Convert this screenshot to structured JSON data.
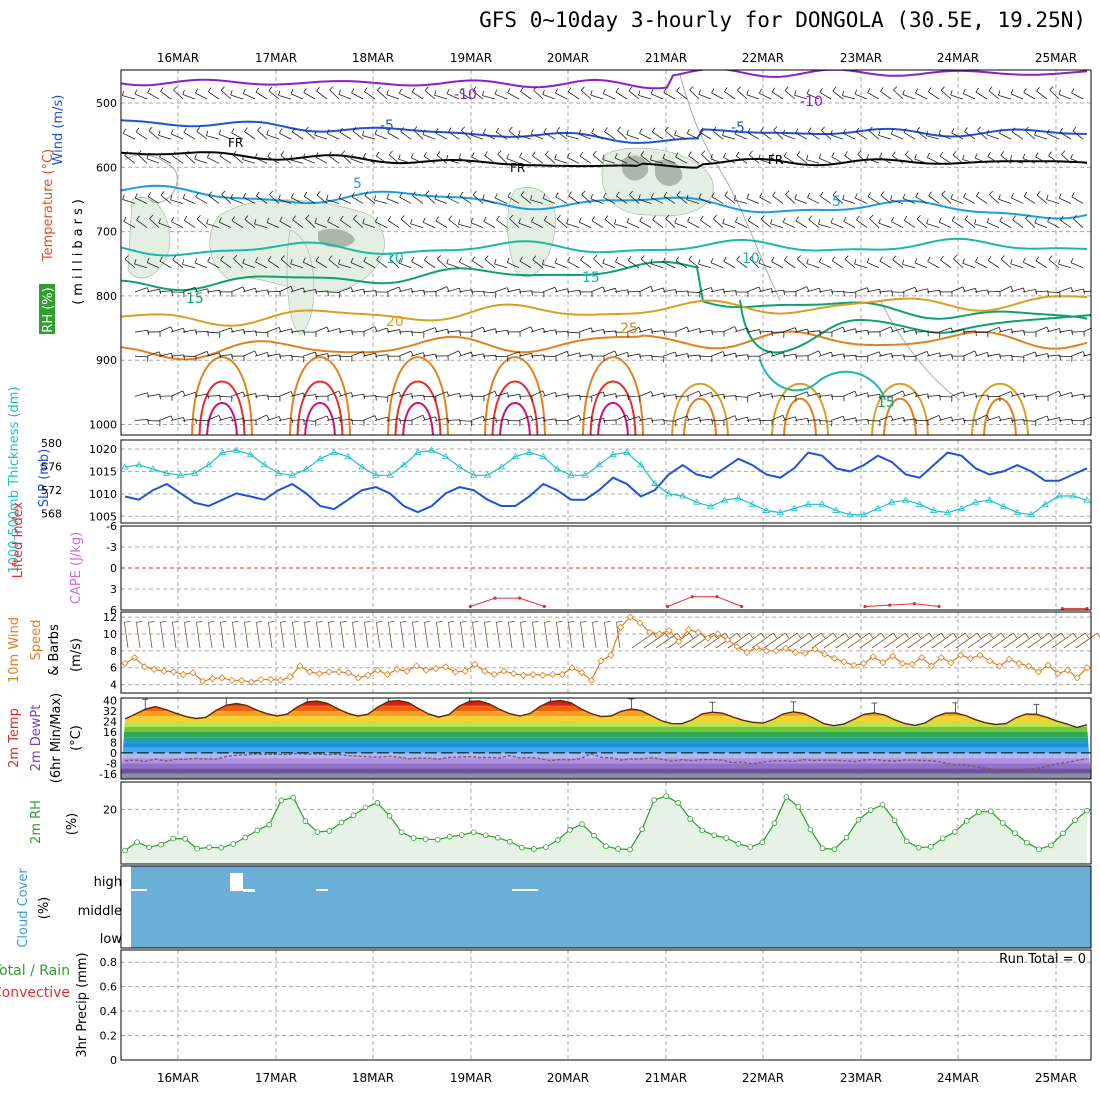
{
  "title": "GFS 0~10day 3-hourly for DONGOLA (30.5E, 19.25N)",
  "dates": [
    "16MAR",
    "17MAR",
    "18MAR",
    "19MAR",
    "20MAR",
    "21MAR",
    "22MAR",
    "23MAR",
    "24MAR",
    "25MAR"
  ],
  "colors": {
    "purple": "#8b1fc8",
    "blue": "#1f52d6",
    "black": "#000000",
    "lightblue": "#1a9ee0",
    "teal": "#1ab8a8",
    "green": "#10a070",
    "gold": "#d8a020",
    "orange": "#e08020",
    "red": "#e03030",
    "magenta": "#d01070",
    "cyan": "#1ec0c8",
    "rhgreen": "#2e9e2e",
    "cloud": "#6baed6"
  },
  "panels": {
    "upper": {
      "ylabel_temp": "Temperature (°C)",
      "ylabel_wind": "Wind (m/s)",
      "ylabel_rh": "RH (%)",
      "ylabel_units": "(millibars)",
      "yticks": [
        "500",
        "600",
        "700",
        "800",
        "900",
        "1000"
      ],
      "labels": {
        "m10a": "-10",
        "m10b": "-10",
        "m5a": "-5",
        "m5b": "-5",
        "fr1": "FR",
        "fr2": "FR",
        "fr3": "FR",
        "p5a": "5",
        "p5b": "5",
        "p10a": "10",
        "p10b": "10",
        "p15a": "15",
        "p15b": "15",
        "p15c": "15",
        "p20": "20",
        "p25": "25"
      }
    },
    "slp": {
      "ylabel_thick": "1000-500mb Thickness (dm)",
      "ylabel_slp": "SLP (mb)",
      "left_ticks": [
        "580",
        "576",
        "572",
        "568"
      ],
      "right_ticks": [
        "1020",
        "1015",
        "1010",
        "1005"
      ]
    },
    "cape": {
      "ylabel_li": "Lifted Index",
      "ylabel_cape": "CAPE (J/kg)",
      "ticks": [
        "-6",
        "-3",
        "0",
        "3",
        "6"
      ]
    },
    "wind10": {
      "ylabel1": "10m Wind",
      "ylabel2": "Speed",
      "ylabel3": "& Barbs",
      "ylabel4": "(m/s)",
      "ticks": [
        "12",
        "10",
        "8",
        "6",
        "4"
      ]
    },
    "temp2m": {
      "ylabel1": "2m Temp",
      "ylabel2": "2m DewPt",
      "ylabel3": "(6hr Min/Max)",
      "ylabel4": "(°C)",
      "ticks": [
        "40",
        "32",
        "24",
        "16",
        "8",
        "0",
        "-8",
        "-16"
      ]
    },
    "rh2m": {
      "ylabel1": "2m RH",
      "ylabel2": "(%)",
      "ticks": [
        "20"
      ]
    },
    "cloud": {
      "ylabel1": "Cloud Cover",
      "ylabel2": "(%)",
      "levels": [
        "high",
        "middle",
        "low"
      ]
    },
    "precip": {
      "ylabel1": "Total / Rain",
      "ylabel2": "Convective",
      "ylabel3": "3hr Precip (mm)",
      "ticks": [
        "0.8",
        "0.6",
        "0.4",
        "0.2",
        "0"
      ],
      "run_total": "Run Total = 0"
    }
  },
  "chart_data": {
    "type": "line",
    "x_dates": [
      "16MAR",
      "17MAR",
      "18MAR",
      "19MAR",
      "20MAR",
      "21MAR",
      "22MAR",
      "23MAR",
      "24MAR",
      "25MAR"
    ],
    "slp_mb": {
      "name": "SLP (mb)",
      "range": [
        1005,
        1020
      ],
      "values": [
        1009.4,
        1008.7,
        1010.8,
        1012.2,
        1010.1,
        1008,
        1007.3,
        1008.7,
        1010.1,
        1009.4,
        1008.7,
        1010.8,
        1012.2,
        1010.1,
        1007.3,
        1006.6,
        1008.7,
        1010.8,
        1011.5,
        1010.1,
        1007.3,
        1005.9,
        1007.3,
        1010.1,
        1011.5,
        1010.8,
        1008.7,
        1007.3,
        1007.3,
        1009.4,
        1012.2,
        1010.8,
        1008.7,
        1008.7,
        1010.8,
        1013.6,
        1012.2,
        1009.4,
        1010.8,
        1014.3,
        1016.4,
        1014.3,
        1013.6,
        1015.7,
        1017.8,
        1016.4,
        1014.3,
        1013.6,
        1015.7,
        1019.2,
        1018.5,
        1015.7,
        1015,
        1016.4,
        1018.5,
        1017.1,
        1014.3,
        1013.6,
        1016.4,
        1019.2,
        1018.5,
        1015.7,
        1014.3,
        1015,
        1016.4,
        1015,
        1012.9,
        1012.9,
        1014.3,
        1015.7
      ]
    },
    "thickness_dm": {
      "name": "1000-500mb Thickness (dm)",
      "range": [
        566.4,
        580
      ],
      "values": [
        576.8,
        577.2,
        576.4,
        575.6,
        575.2,
        575.6,
        577.2,
        579.6,
        580,
        579.2,
        577.2,
        575.6,
        575.2,
        576.4,
        578.4,
        579.6,
        578.8,
        576.8,
        575.2,
        575.2,
        577.2,
        579.6,
        580,
        578.8,
        576.8,
        575.2,
        575.2,
        576.8,
        578.8,
        579.6,
        578.8,
        576.4,
        575.2,
        575.2,
        577.2,
        579.2,
        579.6,
        577.2,
        573.6,
        571.6,
        571.2,
        570,
        569.2,
        570.4,
        570.8,
        569.6,
        568.4,
        568,
        568.8,
        569.6,
        569.6,
        568.4,
        567.6,
        567.6,
        568.8,
        570,
        570.4,
        569.6,
        568.4,
        568,
        568.8,
        570,
        570.4,
        569.2,
        568,
        567.6,
        569.6,
        571.2,
        571.2,
        570.4
      ]
    },
    "lifted_index": {
      "name": "Lifted Index",
      "range": [
        -6,
        6
      ],
      "values": [
        null,
        null,
        null,
        null,
        null,
        null,
        null,
        null,
        null,
        null,
        null,
        null,
        null,
        null,
        5.5,
        4.3,
        4.3,
        5.5,
        null,
        null,
        null,
        null,
        5.5,
        4.1,
        4.1,
        5.5,
        null,
        null,
        null,
        null,
        5.5,
        5.3,
        5.1,
        5.5,
        null,
        null,
        null,
        null,
        5.8,
        5.8
      ]
    },
    "wind10m_ms": {
      "name": "10m Wind Speed (m/s)",
      "range": [
        4,
        12
      ],
      "values": [
        6.5,
        7.2,
        6.1,
        5.8,
        5.6,
        5.5,
        5.2,
        5.4,
        4.4,
        4.7,
        4.8,
        4.5,
        4.5,
        4.3,
        4.6,
        4.6,
        4.5,
        4.9,
        6.2,
        5.5,
        5.3,
        5.5,
        5.5,
        5.4,
        4.8,
        5.1,
        5.7,
        5.2,
        5.8,
        5.6,
        6.2,
        5.7,
        5.9,
        6.1,
        5.5,
        5.6,
        6.4,
        5.6,
        5.2,
        5.6,
        5.3,
        5.1,
        5.2,
        5.1,
        5.2,
        5.2,
        6.0,
        5.4,
        4.5,
        6.8,
        7.5,
        10.8,
        12.0,
        11.3,
        10.2,
        10.0,
        10.4,
        9.1,
        10.5,
        10.2,
        9.5,
        10.0,
        9.3,
        8.5,
        7.8,
        8.4,
        8.0,
        8.0,
        8.3,
        7.8,
        7.7,
        8.2,
        7.6,
        7.1,
        6.7,
        6.3,
        6.5,
        7.3,
        6.6,
        7.4,
        6.5,
        6.4,
        7.2,
        6.2,
        7.2,
        6.6,
        7.5,
        7.1,
        7.5,
        6.8,
        6.2,
        7.0,
        6.5,
        6.2,
        5.5,
        6.3,
        5.3,
        5.7,
        4.8,
        6.0
      ]
    },
    "temp2m_c": {
      "name": "2m Temp (°C)",
      "range": [
        -16,
        40
      ],
      "values": [
        26,
        29.6,
        33.4,
        35.4,
        33.2,
        30.4,
        27.8,
        26.3,
        27.2,
        32.5,
        36.4,
        37.8,
        36.3,
        32.8,
        30,
        28.3,
        29.6,
        35,
        39.1,
        39.6,
        37.9,
        33.8,
        30.3,
        28.2,
        29.6,
        35.2,
        39.3,
        40.2,
        38.5,
        33.8,
        29.7,
        27.4,
        29.3,
        35.8,
        39.3,
        39.7,
        37.4,
        33.2,
        30,
        28.2,
        30.1,
        35.6,
        39.3,
        40.2,
        38.4,
        33.8,
        30.1,
        27.8,
        28.2,
        31.8,
        33.6,
        32.3,
        28.4,
        24.5,
        22.4,
        22.3,
        25.2,
        29.8,
        31.1,
        30.4,
        27.5,
        25,
        23.4,
        22.8,
        25.6,
        29.8,
        31.4,
        30.2,
        26.6,
        22.4,
        20.8,
        22.1,
        25.7,
        29.5,
        30.5,
        29,
        25.4,
        22.5,
        21,
        22.9,
        27.5,
        30.4,
        30.6,
        28.6,
        25.4,
        23,
        21.7,
        22.4,
        26.9,
        29.8,
        29.5,
        27.3,
        24.4,
        22.2,
        19.5,
        21.5
      ]
    },
    "dewpoint2m_c": {
      "name": "2m DewPt (°C)",
      "range": [
        -16,
        40
      ],
      "values": [
        -6,
        -5.5,
        -6.5,
        -4.8,
        -6.2,
        -5,
        -4.8,
        -4.2,
        -4.5,
        -4.8,
        -2.8,
        -1.8,
        -1.5,
        -0.8,
        -1.2,
        -1,
        -1.3,
        -0.5,
        -1,
        -0.8,
        -1.4,
        -1.1,
        -2.2,
        -2.5,
        -3,
        -3.5,
        -2.6,
        -3.3,
        -4.5,
        -4,
        -4.1,
        -4.8,
        -3.5,
        -3.2,
        -2.9,
        -3.5,
        -3.5,
        -3.8,
        -2.1,
        -4,
        -3.6,
        -4.4,
        -6,
        -5.1,
        -5.4,
        -4.5,
        -0.5,
        -3.5,
        -3.8,
        -5.5,
        -4.6,
        -4.6,
        -3.8,
        -4.8,
        -6.3,
        -5.2,
        -6,
        -5.2,
        -5,
        -5.6,
        -7.5,
        -7,
        -8.5,
        -7.2,
        -6.2,
        -6,
        -6.5,
        -5.2,
        -5.8,
        -5.6,
        -5.6,
        -6,
        -6.6,
        -5.5,
        -5.1,
        -5.9,
        -6.2,
        -5.5,
        -5.5,
        -5.9,
        -6.2,
        -7.8,
        -9.2,
        -9.2,
        -10.6,
        -11.8,
        -13.2,
        -13.8,
        -13.8,
        -12.5,
        -12.1,
        -10.5,
        -8.2,
        -7.5,
        -5.8,
        -4.5
      ]
    },
    "rh2m_pct": {
      "name": "2m RH (%)",
      "range": [
        0,
        30
      ],
      "values": [
        4.9,
        8,
        6.1,
        7.1,
        9.3,
        9.2,
        5.6,
        6.1,
        5.9,
        7.3,
        9.7,
        12.3,
        14.4,
        23.3,
        24.3,
        15.7,
        11.7,
        12.1,
        15.2,
        17.8,
        20.7,
        22.4,
        17.6,
        11.6,
        9.5,
        9.1,
        8.9,
        10,
        10.6,
        11.6,
        10.5,
        9.6,
        8.2,
        6,
        5.5,
        6.2,
        8.8,
        12.5,
        14.6,
        10.4,
        6.5,
        5.5,
        5.3,
        12.7,
        23.4,
        24.8,
        22.4,
        16.5,
        12.3,
        10.5,
        9.5,
        7.4,
        6.2,
        7.9,
        14.9,
        24.5,
        20.9,
        12.6,
        5.7,
        5.4,
        9.7,
        16.2,
        19.7,
        21.7,
        16,
        8.3,
        6,
        6.3,
        9.4,
        11.7,
        15.8,
        19,
        19.3,
        15,
        11.3,
        7.8,
        5.4,
        6.8,
        11.2,
        16,
        19.5
      ]
    },
    "cloud_high_pct": {
      "name": "high cloud (%)",
      "values": [
        0,
        0,
        0,
        40,
        0,
        0,
        0,
        0,
        0,
        0
      ]
    },
    "precip_mm": {
      "name": "3hr Precip (mm)",
      "range": [
        0,
        0.9
      ],
      "values": [
        0,
        0,
        0,
        0,
        0,
        0,
        0,
        0,
        0,
        0
      ]
    }
  }
}
